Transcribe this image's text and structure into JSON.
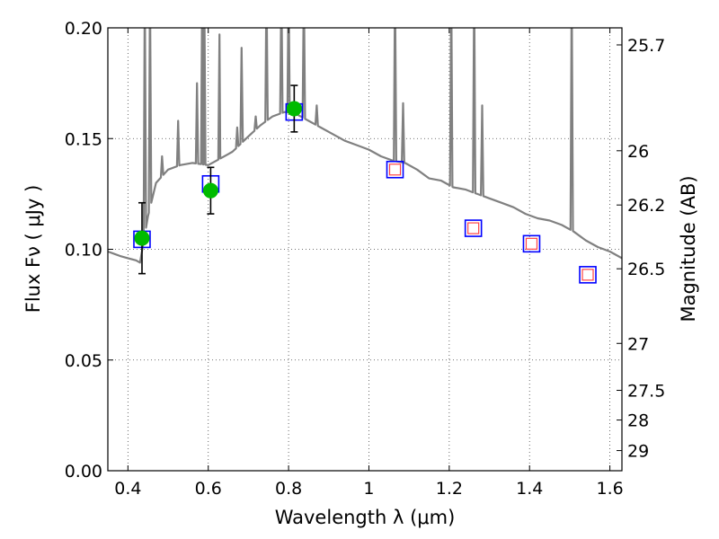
{
  "chart_data": {
    "type": "scatter",
    "xlabel": "Wavelength  λ (μm)",
    "ylabel": "Flux  Fν  ( μJy )",
    "y2label": "Magnitude (AB)",
    "xlim": [
      0.35,
      1.63
    ],
    "ylim": [
      0.0,
      0.2
    ],
    "grid": true,
    "x_ticks": [
      0.4,
      0.6,
      0.8,
      1.0,
      1.2,
      1.4,
      1.6
    ],
    "x_tick_labels": [
      "0.4",
      "0.6",
      "0.8",
      "1",
      "1.2",
      "1.4",
      "1.6"
    ],
    "y_ticks": [
      0.0,
      0.05,
      0.1,
      0.15,
      0.2
    ],
    "y_tick_labels": [
      "0.00",
      "0.05",
      "0.10",
      "0.15",
      "0.20"
    ],
    "mag_ticks": [
      {
        "flux": 0.1923,
        "label": "25.7"
      },
      {
        "flux": 0.1445,
        "label": "26"
      },
      {
        "flux": 0.12,
        "label": "26.2"
      },
      {
        "flux": 0.0912,
        "label": "26.5"
      },
      {
        "flux": 0.0575,
        "label": "27"
      },
      {
        "flux": 0.0363,
        "label": "27.5"
      },
      {
        "flux": 0.0229,
        "label": "28"
      },
      {
        "flux": 0.0091,
        "label": "29"
      }
    ],
    "colors": {
      "sed_line": "#808080",
      "observed_point": "#00bb00",
      "model_box": "#0000ff",
      "model_inner": "#ff4444",
      "error_bar": "#000000",
      "grid": "#444444"
    },
    "observed": [
      {
        "x": 0.435,
        "y": 0.105,
        "err": 0.016
      },
      {
        "x": 0.606,
        "y": 0.1265,
        "err": 0.0105
      },
      {
        "x": 0.814,
        "y": 0.1635,
        "err": 0.0105
      }
    ],
    "model_boxes": [
      {
        "x": 0.435,
        "y": 0.1045
      },
      {
        "x": 0.606,
        "y": 0.1295
      },
      {
        "x": 0.814,
        "y": 0.162
      },
      {
        "x": 1.065,
        "y": 0.136
      },
      {
        "x": 1.26,
        "y": 0.1095
      },
      {
        "x": 1.405,
        "y": 0.1025
      },
      {
        "x": 1.545,
        "y": 0.0885
      }
    ],
    "model_inner": [
      {
        "x": 1.065,
        "y": 0.136
      },
      {
        "x": 1.26,
        "y": 0.1095
      },
      {
        "x": 1.405,
        "y": 0.1025
      },
      {
        "x": 1.545,
        "y": 0.0885
      }
    ],
    "sed_continuum": [
      [
        0.35,
        0.099
      ],
      [
        0.38,
        0.097
      ],
      [
        0.4,
        0.096
      ],
      [
        0.42,
        0.095
      ],
      [
        0.43,
        0.094
      ],
      [
        0.45,
        0.115
      ],
      [
        0.47,
        0.13
      ],
      [
        0.5,
        0.136
      ],
      [
        0.53,
        0.138
      ],
      [
        0.56,
        0.139
      ],
      [
        0.6,
        0.138
      ],
      [
        0.63,
        0.141
      ],
      [
        0.66,
        0.144
      ],
      [
        0.7,
        0.151
      ],
      [
        0.73,
        0.156
      ],
      [
        0.76,
        0.16
      ],
      [
        0.79,
        0.162
      ],
      [
        0.82,
        0.161
      ],
      [
        0.85,
        0.158
      ],
      [
        0.88,
        0.155
      ],
      [
        0.91,
        0.152
      ],
      [
        0.94,
        0.149
      ],
      [
        0.97,
        0.147
      ],
      [
        1.0,
        0.145
      ],
      [
        1.03,
        0.142
      ],
      [
        1.06,
        0.14
      ],
      [
        1.09,
        0.139
      ],
      [
        1.12,
        0.136
      ],
      [
        1.15,
        0.132
      ],
      [
        1.18,
        0.131
      ],
      [
        1.21,
        0.128
      ],
      [
        1.24,
        0.127
      ],
      [
        1.27,
        0.125
      ],
      [
        1.3,
        0.123
      ],
      [
        1.33,
        0.121
      ],
      [
        1.36,
        0.119
      ],
      [
        1.39,
        0.116
      ],
      [
        1.42,
        0.114
      ],
      [
        1.45,
        0.113
      ],
      [
        1.48,
        0.111
      ],
      [
        1.51,
        0.108
      ],
      [
        1.54,
        0.104
      ],
      [
        1.57,
        0.101
      ],
      [
        1.6,
        0.099
      ],
      [
        1.63,
        0.096
      ]
    ],
    "sed_lines": [
      {
        "x": 0.442,
        "y": 0.22
      },
      {
        "x": 0.455,
        "y": 0.22
      },
      {
        "x": 0.485,
        "y": 0.142
      },
      {
        "x": 0.525,
        "y": 0.158
      },
      {
        "x": 0.572,
        "y": 0.175
      },
      {
        "x": 0.585,
        "y": 0.22
      },
      {
        "x": 0.59,
        "y": 0.22
      },
      {
        "x": 0.628,
        "y": 0.197
      },
      {
        "x": 0.672,
        "y": 0.155
      },
      {
        "x": 0.683,
        "y": 0.191
      },
      {
        "x": 0.718,
        "y": 0.16
      },
      {
        "x": 0.745,
        "y": 0.22
      },
      {
        "x": 0.782,
        "y": 0.22
      },
      {
        "x": 0.8,
        "y": 0.22
      },
      {
        "x": 0.838,
        "y": 0.22
      },
      {
        "x": 0.87,
        "y": 0.165
      },
      {
        "x": 1.065,
        "y": 0.22
      },
      {
        "x": 1.085,
        "y": 0.166
      },
      {
        "x": 1.205,
        "y": 0.22
      },
      {
        "x": 1.262,
        "y": 0.22
      },
      {
        "x": 1.282,
        "y": 0.165
      },
      {
        "x": 1.505,
        "y": 0.22
      }
    ]
  }
}
